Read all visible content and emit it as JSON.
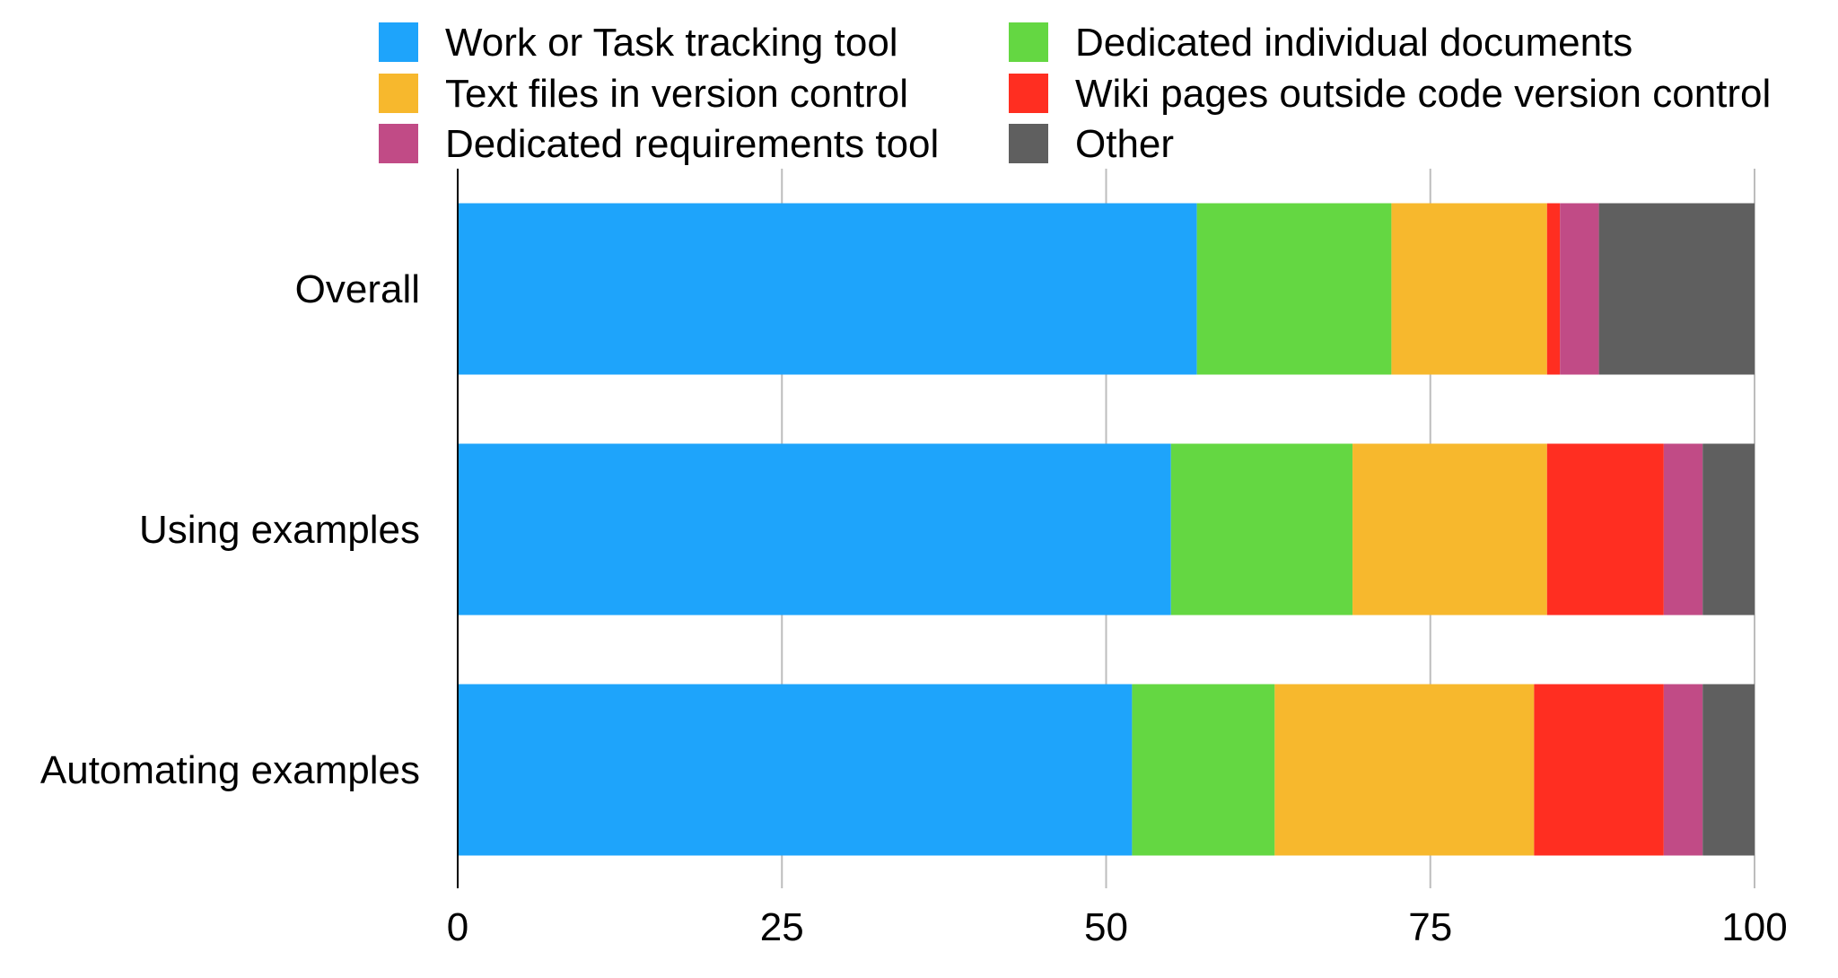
{
  "chart_data": {
    "type": "bar",
    "orientation": "horizontal",
    "stacked": true,
    "title": "",
    "xlabel": "",
    "ylabel": "",
    "xlim": [
      0,
      100
    ],
    "x_ticks": [
      "0",
      "25",
      "50",
      "75",
      "100"
    ],
    "grid": true,
    "legend_position": "top",
    "categories": [
      "Overall",
      "Using examples",
      "Automating examples"
    ],
    "series": [
      {
        "name": "Work or Task tracking tool",
        "color": "#1EA4FB",
        "values": [
          57,
          55,
          52
        ]
      },
      {
        "name": "Dedicated individual documents",
        "color": "#64D742",
        "values": [
          15,
          14,
          11
        ]
      },
      {
        "name": "Text files in version control",
        "color": "#F7B82D",
        "values": [
          12,
          15,
          20
        ]
      },
      {
        "name": "Wiki pages outside code version control",
        "color": "#FF2E21",
        "values": [
          1,
          9,
          10
        ]
      },
      {
        "name": "Dedicated requirements tool",
        "color": "#C14B86",
        "values": [
          3,
          3,
          3
        ]
      },
      {
        "name": "Other",
        "color": "#5F5F5F",
        "values": [
          12,
          4,
          4
        ]
      }
    ]
  }
}
